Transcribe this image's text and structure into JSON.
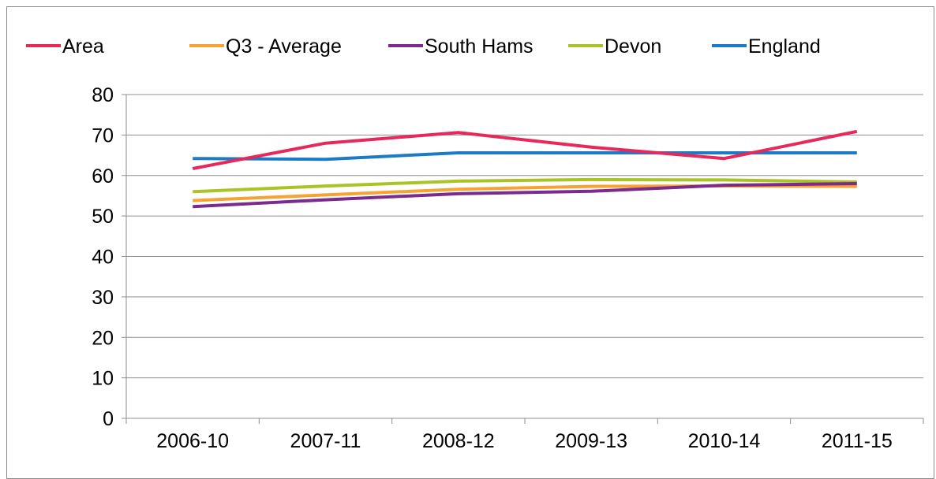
{
  "chart_data": {
    "type": "line",
    "categories": [
      "2006-10",
      "2007-11",
      "2008-12",
      "2009-13",
      "2010-14",
      "2011-15"
    ],
    "ylim": [
      0,
      80
    ],
    "yticks": [
      0,
      10,
      20,
      30,
      40,
      50,
      60,
      70,
      80
    ],
    "grid": true,
    "legend_position": "top",
    "series": [
      {
        "name": "Area",
        "color": "#e8275b",
        "values": [
          61.7,
          68.0,
          70.6,
          67.0,
          64.2,
          70.9
        ]
      },
      {
        "name": "Q3 - Average",
        "color": "#f7a334",
        "values": [
          53.8,
          55.2,
          56.6,
          57.3,
          57.4,
          57.3
        ]
      },
      {
        "name": "South Hams",
        "color": "#7b2a8d",
        "values": [
          52.3,
          54.0,
          55.5,
          56.1,
          57.6,
          58.0
        ]
      },
      {
        "name": "Devon",
        "color": "#a9c424",
        "values": [
          56.0,
          57.4,
          58.6,
          59.0,
          58.9,
          58.4
        ]
      },
      {
        "name": "England",
        "color": "#1b7bc4",
        "values": [
          64.2,
          64.0,
          65.6,
          65.6,
          65.6,
          65.6
        ]
      }
    ]
  }
}
